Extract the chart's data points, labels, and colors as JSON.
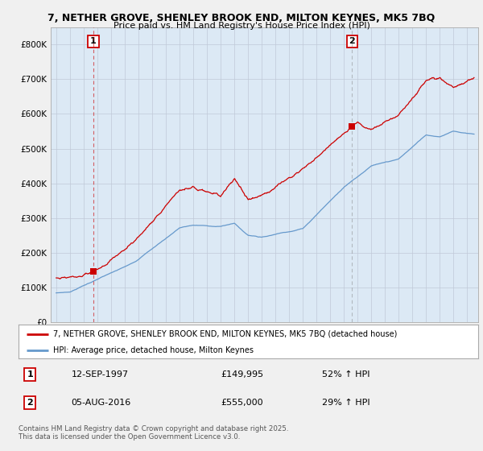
{
  "title_line1": "7, NETHER GROVE, SHENLEY BROOK END, MILTON KEYNES, MK5 7BQ",
  "title_line2": "Price paid vs. HM Land Registry's House Price Index (HPI)",
  "y_min": 0,
  "y_max": 850000,
  "y_ticks": [
    0,
    100000,
    200000,
    300000,
    400000,
    500000,
    600000,
    700000,
    800000
  ],
  "y_tick_labels": [
    "£0",
    "£100K",
    "£200K",
    "£300K",
    "£400K",
    "£500K",
    "£600K",
    "£700K",
    "£800K"
  ],
  "red_line_color": "#cc0000",
  "blue_line_color": "#6699cc",
  "sale1_year": 1997.71,
  "sale1_price": 149995,
  "sale1_label": "1",
  "sale2_year": 2016.59,
  "sale2_price": 555000,
  "sale2_label": "2",
  "legend_label_red": "7, NETHER GROVE, SHENLEY BROOK END, MILTON KEYNES, MK5 7BQ (detached house)",
  "legend_label_blue": "HPI: Average price, detached house, Milton Keynes",
  "annotation1_label": "1",
  "annotation1_date": "12-SEP-1997",
  "annotation1_price": "£149,995",
  "annotation1_hpi": "52% ↑ HPI",
  "annotation2_label": "2",
  "annotation2_date": "05-AUG-2016",
  "annotation2_price": "£555,000",
  "annotation2_hpi": "29% ↑ HPI",
  "footer": "Contains HM Land Registry data © Crown copyright and database right 2025.\nThis data is licensed under the Open Government Licence v3.0.",
  "bg_color": "#f0f0f0",
  "plot_bg_color": "#dce9f5"
}
